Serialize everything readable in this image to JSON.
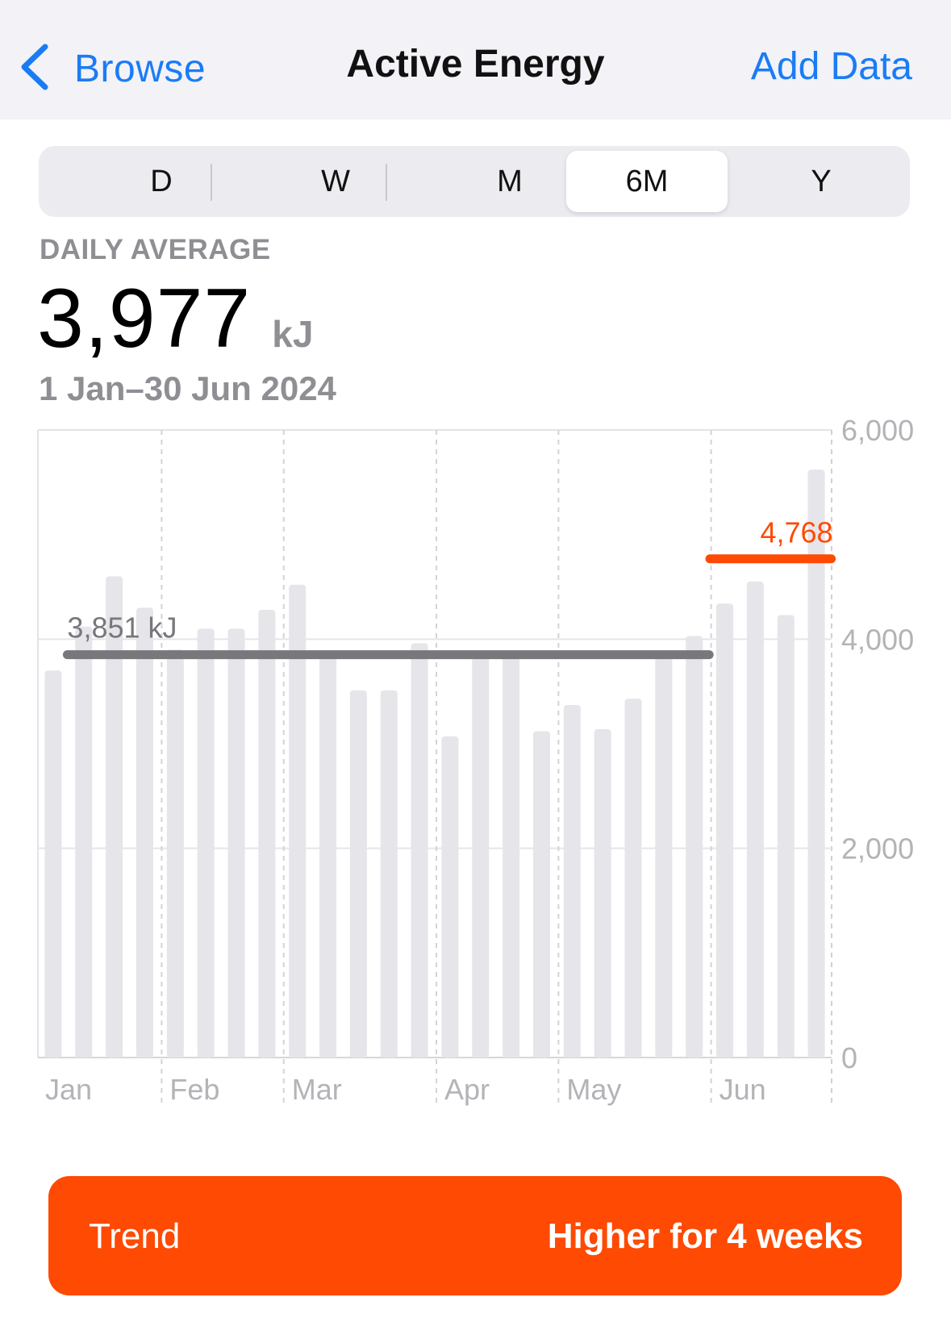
{
  "nav": {
    "back_label": "Browse",
    "title": "Active Energy",
    "action_label": "Add Data",
    "accent_color": "#1a7cf5"
  },
  "segments": {
    "items": [
      "D",
      "W",
      "M",
      "6M",
      "Y"
    ],
    "selected": "6M"
  },
  "summary": {
    "label": "DAILY AVERAGE",
    "value": "3,977",
    "unit": "kJ",
    "date_range": "1 Jan–30 Jun 2024"
  },
  "chart_data": {
    "type": "bar",
    "categories": [
      "Jan",
      "",
      "",
      "",
      "Feb",
      "",
      "",
      "",
      "Mar",
      "",
      "",
      "",
      "",
      "Apr",
      "",
      "",
      "",
      "May",
      "",
      "",
      "",
      "",
      "Jun",
      "",
      "",
      ""
    ],
    "values": [
      3700,
      4120,
      4600,
      4300,
      3900,
      4100,
      4100,
      4280,
      4520,
      3880,
      3510,
      3510,
      3960,
      3070,
      3890,
      3880,
      3120,
      3370,
      3140,
      3430,
      3860,
      4030,
      4340,
      4550,
      4230,
      5620
    ],
    "x_month_labels": [
      "Jan",
      "Feb",
      "Mar",
      "Apr",
      "May",
      "Jun"
    ],
    "y_ticks": [
      "6,000",
      "4,000",
      "2,000",
      "0"
    ],
    "ylim": [
      0,
      6000
    ],
    "bar_color": "#e5e5ea",
    "reference_lines": [
      {
        "label": "3,851 kJ",
        "value": 3851,
        "from_bar": 0,
        "to_bar": 21,
        "color": "#77777c"
      },
      {
        "label": "4,768",
        "value": 4768,
        "from_bar": 22,
        "to_bar": 25,
        "color": "#fe4a03"
      }
    ]
  },
  "trend": {
    "label": "Trend",
    "value": "Higher for 4 weeks",
    "color": "#fe4a03"
  }
}
